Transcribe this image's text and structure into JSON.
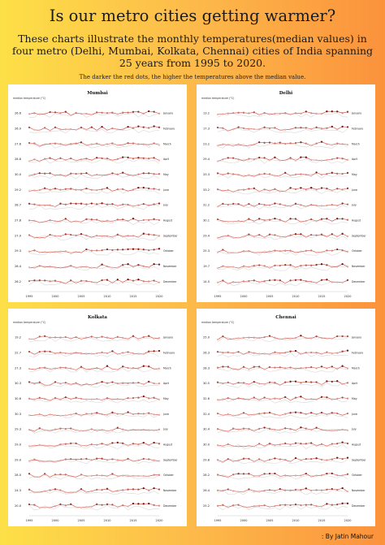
{
  "header": {
    "title": "Is our metro cities getting warmer?",
    "subtitle": "These charts illustrate the monthly temperatures(median values) in four metro (Delhi, Mumbai, Kolkata, Chennai) cities of India spanning 25 years from 1995 to 2020.",
    "note": "The darker the red dots, the higher the temperatures above the median value."
  },
  "footer": {
    "credit": ": By Jatin Mahour"
  },
  "colors": {
    "line": "#c0392b",
    "dot_low": "#f5b7b1",
    "dot_high": "#7b0d06",
    "ghost": "#d8d8d8"
  },
  "chart_data": [
    {
      "type": "line",
      "title": "Mumbai",
      "ylabel": "median temperature (°C)",
      "x_ticks": [
        "1995",
        "2000",
        "2005",
        "2010",
        "2015",
        "2020"
      ],
      "months": [
        "January",
        "February",
        "March",
        "April",
        "May",
        "June",
        "July",
        "August",
        "September",
        "October",
        "November",
        "December"
      ],
      "medians": [
        "26.6",
        "26.9",
        "27.6",
        "28.8",
        "30.0",
        "29.2",
        "28.7",
        "27.8",
        "27.9",
        "29.3",
        "28.4",
        "26.2"
      ]
    },
    {
      "type": "line",
      "title": "Delhi",
      "ylabel": "median temperature (°C)",
      "x_ticks": [
        "1995",
        "2000",
        "2005",
        "2010",
        "2015",
        "2020"
      ],
      "months": [
        "January",
        "February",
        "March",
        "April",
        "May",
        "June",
        "July",
        "August",
        "September",
        "October",
        "November",
        "December"
      ],
      "medians": [
        "13.2",
        "17.3",
        "23.2",
        "29.4",
        "33.3",
        "33.2",
        "31.2",
        "30.1",
        "29.4",
        "25.3",
        "19.7",
        "14.5"
      ]
    },
    {
      "type": "line",
      "title": "Kolkata",
      "ylabel": "median temperature (°C)",
      "x_ticks": [
        "1995",
        "2000",
        "2005",
        "2010",
        "2015",
        "2020"
      ],
      "months": [
        "January",
        "February",
        "March",
        "April",
        "May",
        "June",
        "July",
        "August",
        "September",
        "October",
        "November",
        "December"
      ],
      "medians": [
        "19.2",
        "22.7",
        "27.3",
        "30.3",
        "30.6",
        "30.3",
        "29.3",
        "29.0",
        "29.0",
        "28.0",
        "24.3",
        "20.0"
      ]
    },
    {
      "type": "line",
      "title": "Chennai",
      "ylabel": "median temperature (°C)",
      "x_ticks": [
        "1995",
        "2000",
        "2005",
        "2010",
        "2015",
        "2020"
      ],
      "months": [
        "January",
        "February",
        "March",
        "April",
        "May",
        "June",
        "July",
        "August",
        "September",
        "October",
        "November",
        "December"
      ],
      "medians": [
        "25.0",
        "26.3",
        "28.3",
        "30.5",
        "32.6",
        "32.4",
        "30.4",
        "30.0",
        "29.8",
        "28.2",
        "26.4",
        "25.2"
      ]
    }
  ]
}
